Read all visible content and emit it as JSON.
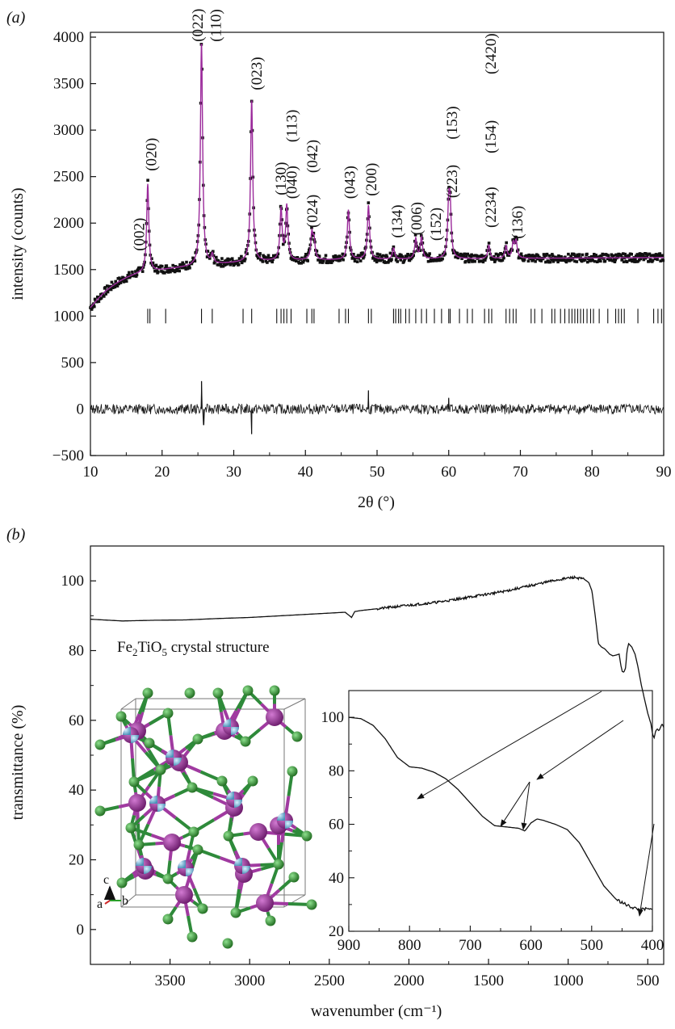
{
  "panel_a": {
    "label": "(a)",
    "colors": {
      "observed": "#111111",
      "fit": "#9b2a9b",
      "ticks": "#111111",
      "difference": "#111111"
    },
    "chart_data": {
      "type": "scatter",
      "xlabel": "2θ (°)",
      "ylabel": "intensity (counts)",
      "xlim": [
        10,
        90
      ],
      "ylim": [
        -500,
        4000
      ],
      "xticks": [
        10,
        20,
        30,
        40,
        50,
        60,
        70,
        80,
        90
      ],
      "yticks": [
        -500,
        0,
        500,
        1000,
        1500,
        2000,
        2500,
        3000,
        3500,
        4000
      ],
      "grid": false,
      "peaks": [
        {
          "label": "(002)",
          "x": 18.0,
          "y": 2420
        },
        {
          "label": "(020)",
          "x": 18.0,
          "y": 2420
        },
        {
          "label": "(022)",
          "x": 25.5,
          "y": 3950
        },
        {
          "label": "(110)",
          "x": 27.0,
          "y": 1650
        },
        {
          "label": "(023)",
          "x": 32.5,
          "y": 3330
        },
        {
          "label": "(130)",
          "x": 36.6,
          "y": 2150
        },
        {
          "label": "(040)",
          "x": 37.4,
          "y": 2180
        },
        {
          "label": "(113)",
          "x": 37.4,
          "y": 2180
        },
        {
          "label": "(024)",
          "x": 40.9,
          "y": 1870
        },
        {
          "label": "(042)",
          "x": 41.2,
          "y": 1800
        },
        {
          "label": "(043)",
          "x": 46.0,
          "y": 2140
        },
        {
          "label": "(200)",
          "x": 48.8,
          "y": 2190
        },
        {
          "label": "(134)",
          "x": 52.3,
          "y": 1730
        },
        {
          "label": "(006)",
          "x": 55.4,
          "y": 1830
        },
        {
          "label": "(152)",
          "x": 56.2,
          "y": 1840
        },
        {
          "label": "(223)",
          "x": 60.0,
          "y": 2130
        },
        {
          "label": "(153)",
          "x": 60.2,
          "y": 2090
        },
        {
          "label": "(2234)",
          "x": 65.6,
          "y": 1760
        },
        {
          "label": "(154)",
          "x": 68.0,
          "y": 1750
        },
        {
          "label": "(2420)",
          "x": 69.0,
          "y": 1780
        },
        {
          "label": "(136)",
          "x": 69.4,
          "y": 1800
        }
      ],
      "background_points": [
        [
          10,
          1090
        ],
        [
          11,
          1180
        ],
        [
          12,
          1260
        ],
        [
          13,
          1320
        ],
        [
          14,
          1370
        ],
        [
          15,
          1410
        ],
        [
          16,
          1440
        ],
        [
          17,
          1460
        ],
        [
          18,
          1475
        ],
        [
          20,
          1495
        ],
        [
          22,
          1515
        ],
        [
          24,
          1530
        ],
        [
          26,
          1545
        ],
        [
          28,
          1560
        ],
        [
          30,
          1570
        ],
        [
          35,
          1590
        ],
        [
          40,
          1600
        ],
        [
          50,
          1610
        ],
        [
          60,
          1615
        ],
        [
          70,
          1620
        ],
        [
          80,
          1625
        ],
        [
          90,
          1630
        ]
      ],
      "reflection_ticks": [
        18.0,
        18.3,
        20.5,
        25.5,
        27.0,
        31.3,
        32.5,
        36.0,
        36.6,
        37.0,
        37.4,
        38.0,
        40.2,
        40.9,
        41.2,
        44.7,
        45.6,
        46.0,
        48.8,
        49.2,
        52.3,
        52.6,
        53.0,
        53.3,
        54.0,
        54.5,
        55.4,
        56.2,
        56.9,
        58.0,
        59.0,
        60.0,
        60.2,
        61.5,
        62.6,
        63.3,
        65.0,
        65.6,
        66.0,
        68.0,
        68.5,
        69.0,
        69.4,
        71.5,
        72.0,
        73.0,
        74.4,
        74.8,
        75.6,
        76.2,
        76.8,
        77.2,
        77.6,
        78.0,
        78.4,
        78.8,
        79.3,
        79.8,
        80.2,
        81.0,
        82.2,
        83.3,
        83.7,
        84.1,
        84.5,
        86.4,
        88.6,
        89.2,
        89.7
      ],
      "reflection_tick_level": 1000,
      "difference_baseline": 0,
      "difference_spikes": [
        [
          25.5,
          300
        ],
        [
          25.8,
          -170
        ],
        [
          32.5,
          -270
        ],
        [
          48.8,
          200
        ],
        [
          60.0,
          120
        ]
      ]
    }
  },
  "panel_b": {
    "label": "(b)",
    "inset_title_prefix": "Fe",
    "inset_title_sub1": "2",
    "inset_title_mid": "TiO",
    "inset_title_sub2": "5",
    "inset_title_suffix": " crystal structure",
    "axes_labels": {
      "c": "c",
      "a": "a",
      "b": "b"
    },
    "colors": {
      "line": "#111111",
      "fe_atom": "#8a2a8a",
      "ti_atom": "#7ab8d8",
      "o_atom": "#2e8b2e",
      "bond_fe": "#a03aa0",
      "bond_o": "#2e8a3a"
    },
    "chart_data": [
      {
        "type": "line",
        "xlabel": "wavenumber (cm⁻¹)",
        "ylabel": "transmittance (%)",
        "xlim": [
          4000,
          400
        ],
        "ylim": [
          -10,
          110
        ],
        "xticks": [
          3500,
          3000,
          2500,
          2000,
          1500,
          1000,
          500
        ],
        "yticks": [
          0,
          20,
          40,
          60,
          80,
          100
        ],
        "x_reversed": true,
        "series": [
          {
            "x": [
              4000,
              3800,
              3600,
              3400,
              3200,
              3000,
              2800,
              2600,
              2400,
              2360,
              2340,
              2300,
              2200,
              2000,
              1800,
              1600,
              1400,
              1200,
              1100,
              1000,
              960,
              900,
              870,
              850,
              830,
              810,
              790,
              770,
              760,
              740,
              720,
              700,
              680,
              670,
              660,
              650,
              640,
              630,
              620,
              600,
              580,
              560,
              540,
              520,
              500,
              480,
              470,
              460,
              450,
              440,
              430,
              420,
              410,
              400
            ],
            "y": [
              89,
              88.5,
              88.7,
              88.8,
              89.2,
              89.5,
              90,
              90.5,
              91,
              89.5,
              91.2,
              91.5,
              92,
              93,
              94,
              95.5,
              97,
              99,
              100,
              100.8,
              101,
              100.5,
              99.5,
              97,
              90,
              82,
              81,
              80.5,
              80,
              79,
              78.5,
              78.7,
              79,
              76,
              74,
              73.8,
              75,
              80,
              82,
              81,
              79,
              75,
              70,
              66,
              62,
              59,
              56,
              55,
              57,
              57.5,
              57,
              58,
              59,
              58
            ]
          }
        ]
      },
      {
        "type": "line",
        "xlim": [
          900,
          400
        ],
        "ylim": [
          20,
          110
        ],
        "xticks": [
          900,
          800,
          700,
          600,
          500,
          400
        ],
        "yticks": [
          20,
          40,
          60,
          80,
          100
        ],
        "x_reversed": true,
        "series": [
          {
            "x": [
              900,
              880,
              860,
              840,
              820,
              800,
              780,
              760,
              740,
              720,
              700,
              680,
              660,
              640,
              620,
              610,
              600,
              590,
              580,
              560,
              540,
              520,
              500,
              480,
              460,
              440,
              420,
              410,
              400
            ],
            "y": [
              100,
              99.5,
              97,
              92,
              85,
              81.5,
              81,
              79.5,
              77,
              73,
              68,
              63,
              59.5,
              59,
              58.5,
              57.5,
              60.5,
              62,
              61.5,
              60,
              58,
              53,
              45,
              37,
              32,
              29.5,
              28,
              28.3,
              28
            ]
          }
        ]
      }
    ]
  }
}
